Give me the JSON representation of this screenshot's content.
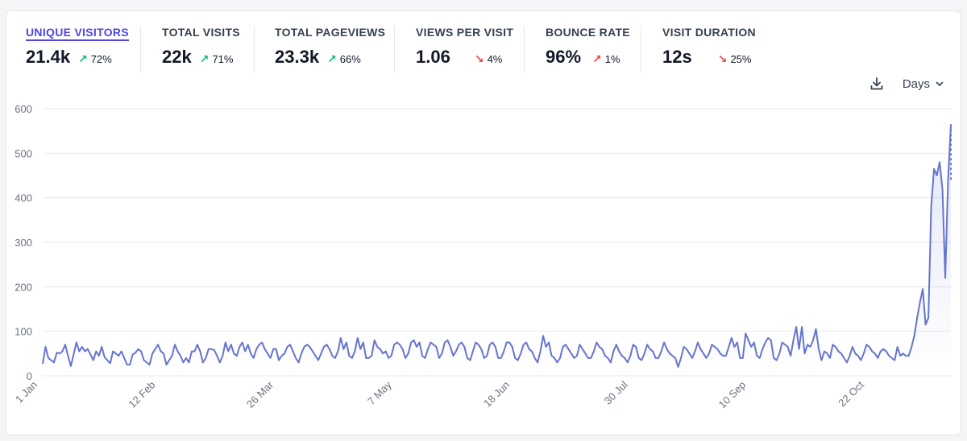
{
  "metrics": [
    {
      "label": "UNIQUE VISITORS",
      "value": "21.4k",
      "change": "72%",
      "direction": "up"
    },
    {
      "label": "TOTAL VISITS",
      "value": "22k",
      "change": "71%",
      "direction": "up"
    },
    {
      "label": "TOTAL PAGEVIEWS",
      "value": "23.3k",
      "change": "66%",
      "direction": "up"
    },
    {
      "label": "VIEWS PER VISIT",
      "value": "1.06",
      "change": "4%",
      "direction": "down"
    },
    {
      "label": "BOUNCE RATE",
      "value": "96%",
      "change": "1%",
      "direction": "up-bad"
    },
    {
      "label": "VISIT DURATION",
      "value": "12s",
      "change": "25%",
      "direction": "down"
    }
  ],
  "controls": {
    "interval_label": "Days",
    "download_icon": "download-icon",
    "chevron_icon": "chevron-down-icon"
  },
  "colors": {
    "line": "#6574cd",
    "accent": "#4f46e5",
    "up_good": "#10b981",
    "down_bad": "#ef4444",
    "grid": "#e5e7eb"
  },
  "chart_data": {
    "type": "line",
    "title": "",
    "xlabel": "",
    "ylabel": "",
    "ylim": [
      0,
      600
    ],
    "yticks": [
      0,
      100,
      200,
      300,
      400,
      500,
      600
    ],
    "grid": true,
    "x_tick_labels": [
      "1 Jan",
      "12 Feb",
      "26 Mar",
      "7 May",
      "18 Jun",
      "30 Jul",
      "10 Sep",
      "22 Oct"
    ],
    "x_tick_day_index": [
      0,
      42,
      84,
      126,
      168,
      210,
      252,
      294
    ],
    "series": [
      {
        "name": "Unique visitors",
        "values": [
          27,
          65,
          40,
          35,
          30,
          52,
          50,
          55,
          70,
          45,
          22,
          48,
          75,
          55,
          65,
          55,
          60,
          48,
          35,
          55,
          45,
          65,
          42,
          35,
          28,
          55,
          50,
          45,
          55,
          40,
          25,
          25,
          48,
          52,
          60,
          55,
          35,
          30,
          25,
          50,
          60,
          70,
          55,
          50,
          25,
          35,
          45,
          70,
          55,
          45,
          30,
          40,
          30,
          55,
          55,
          70,
          55,
          30,
          40,
          60,
          60,
          58,
          45,
          30,
          45,
          75,
          55,
          70,
          50,
          45,
          65,
          75,
          55,
          70,
          50,
          40,
          60,
          70,
          75,
          60,
          50,
          40,
          60,
          60,
          35,
          45,
          50,
          65,
          70,
          55,
          40,
          30,
          50,
          65,
          70,
          65,
          55,
          45,
          35,
          50,
          65,
          70,
          60,
          45,
          40,
          55,
          85,
          60,
          75,
          45,
          40,
          55,
          85,
          60,
          75,
          40,
          40,
          45,
          80,
          65,
          60,
          50,
          55,
          40,
          45,
          70,
          75,
          70,
          60,
          40,
          50,
          75,
          80,
          65,
          75,
          45,
          40,
          60,
          75,
          70,
          65,
          40,
          50,
          75,
          80,
          65,
          45,
          55,
          70,
          75,
          65,
          40,
          35,
          55,
          75,
          70,
          60,
          40,
          45,
          70,
          75,
          65,
          40,
          40,
          55,
          75,
          75,
          65,
          40,
          35,
          50,
          70,
          75,
          60,
          55,
          40,
          30,
          55,
          90,
          65,
          75,
          45,
          40,
          30,
          40,
          65,
          70,
          60,
          50,
          40,
          45,
          70,
          60,
          50,
          40,
          40,
          55,
          75,
          65,
          60,
          45,
          40,
          30,
          55,
          70,
          55,
          45,
          40,
          30,
          45,
          70,
          65,
          40,
          35,
          50,
          70,
          60,
          55,
          40,
          40,
          55,
          75,
          60,
          50,
          45,
          40,
          20,
          40,
          65,
          60,
          50,
          40,
          55,
          75,
          60,
          50,
          40,
          50,
          70,
          65,
          60,
          50,
          45,
          45,
          65,
          85,
          65,
          75,
          40,
          40,
          95,
          80,
          65,
          75,
          45,
          40,
          60,
          75,
          85,
          80,
          40,
          35,
          50,
          75,
          70,
          65,
          45,
          80,
          110,
          60,
          110,
          50,
          70,
          65,
          80,
          105,
          60,
          35,
          55,
          50,
          40,
          70,
          65,
          55,
          50,
          40,
          30,
          45,
          65,
          50,
          45,
          35,
          50,
          70,
          65,
          55,
          50,
          40,
          55,
          60,
          55,
          45,
          40,
          35,
          65,
          45,
          50,
          45,
          45,
          65,
          90,
          130,
          165,
          195,
          115,
          130,
          380,
          465,
          450,
          480,
          420,
          220,
          440,
          565
        ]
      }
    ]
  }
}
